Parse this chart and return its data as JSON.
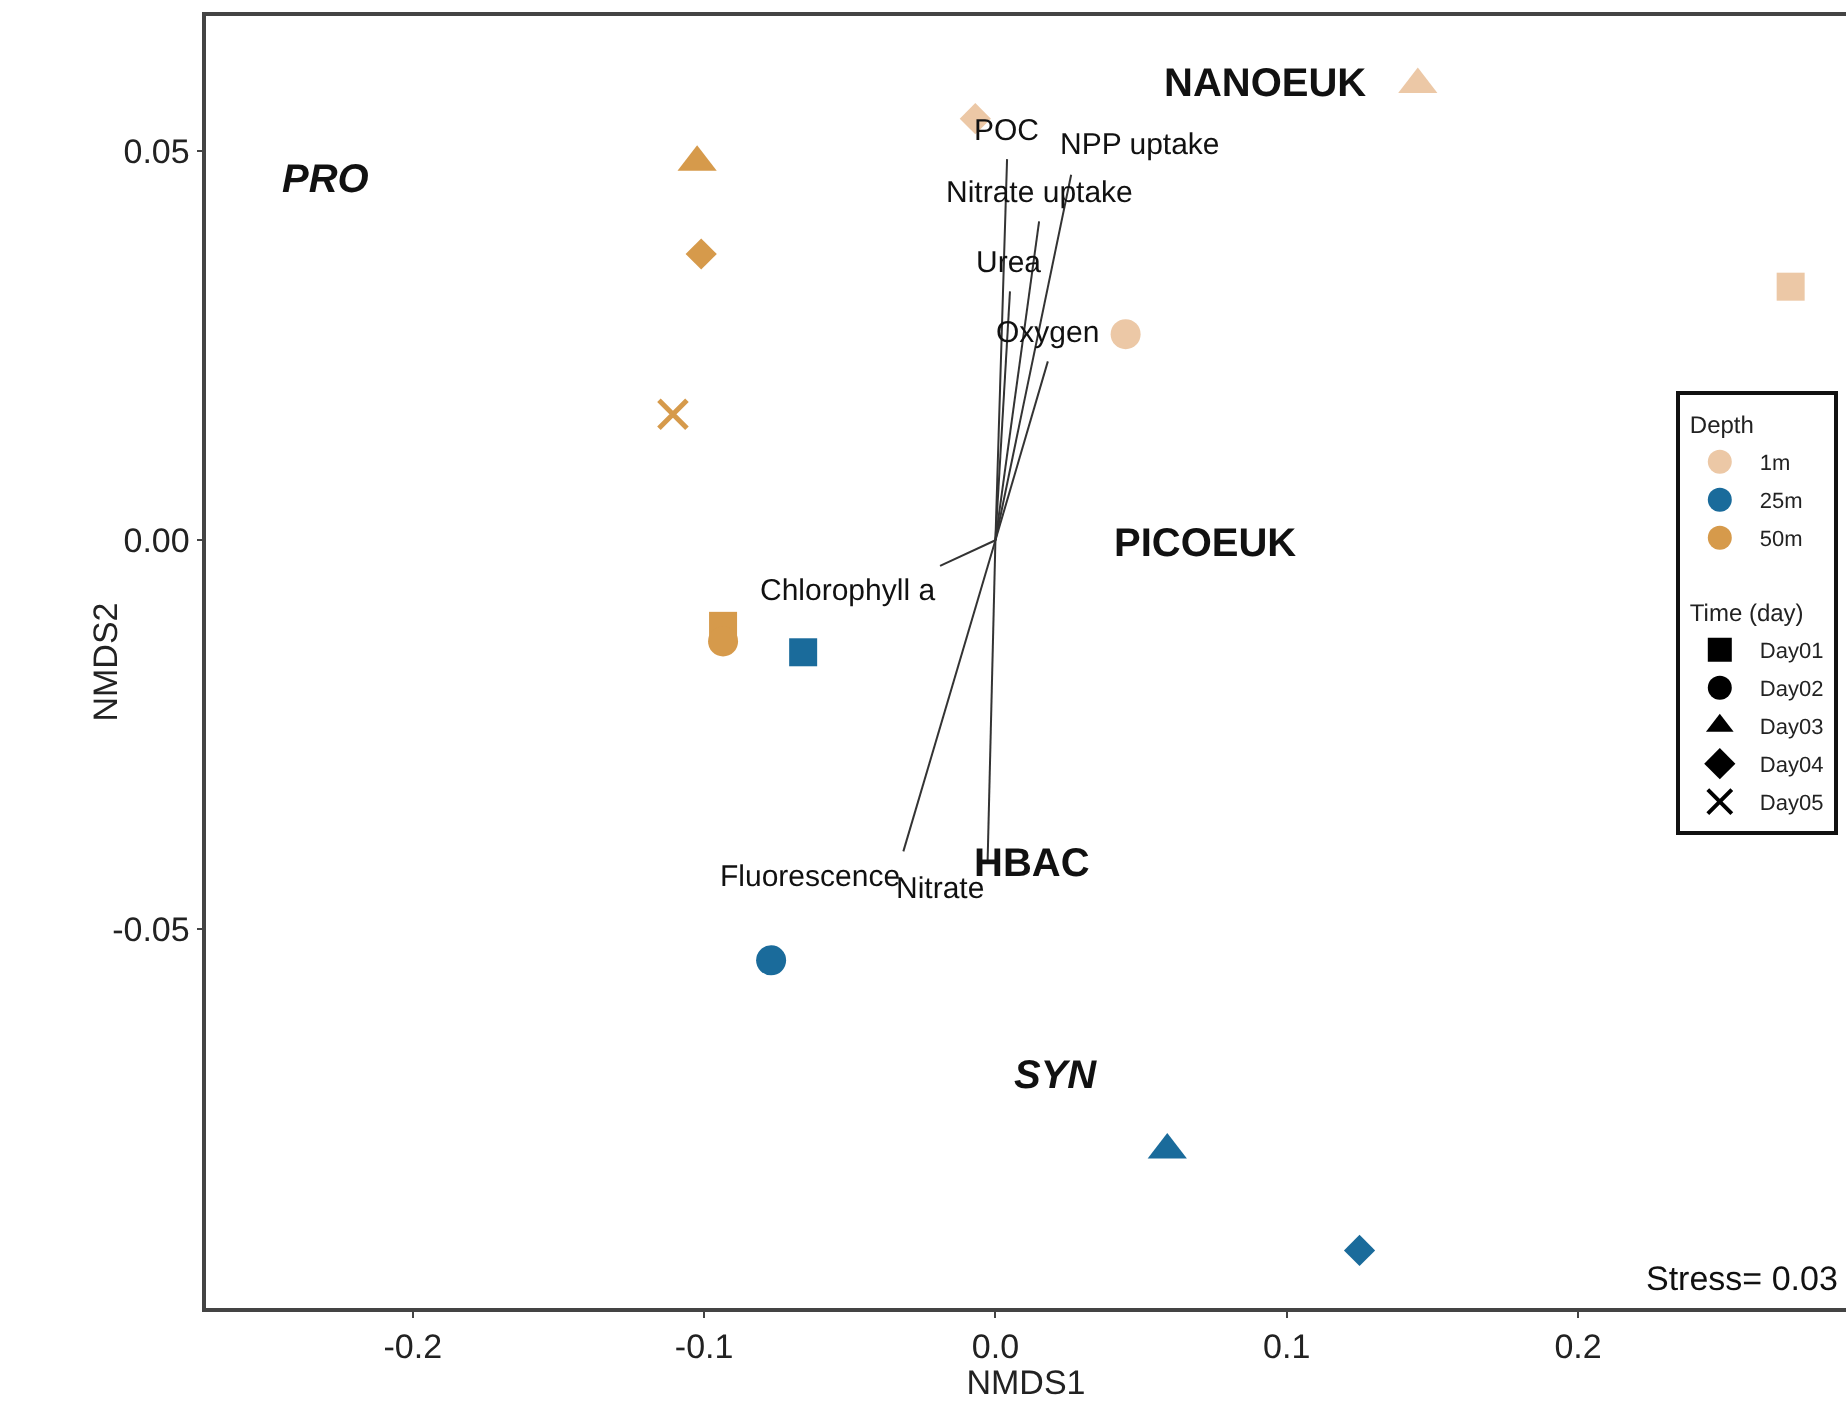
{
  "chart_data": {
    "type": "scatter",
    "xlabel": "NMDS1",
    "ylabel": "NMDS2",
    "xlim": [
      -0.271,
      0.292
    ],
    "xticks": [
      -0.2,
      -0.1,
      {
        "value": 0,
        "label": "0.0"
      },
      0.1,
      0.2
    ],
    "ylim": [
      -0.0987,
      0.0674
    ],
    "yticks": [
      {
        "value": -0.05,
        "label": "-0.05"
      },
      {
        "value": 0,
        "label": "0.00"
      },
      {
        "value": 0.05,
        "label": "0.05"
      }
    ],
    "grid": false,
    "legend": "right",
    "legend_title": [
      "Depth",
      "Time (day)"
    ],
    "series": [
      {
        "name": "1m",
        "color": "#ecc8a6",
        "marker": "circle"
      },
      {
        "name": "25m",
        "color": "#1a6b9b",
        "marker": "circle"
      },
      {
        "name": "50m",
        "color": "#d69a4b",
        "marker": "circle"
      },
      {
        "name": "Day01",
        "color": "#000000",
        "marker": "square"
      },
      {
        "name": "Day02",
        "color": "#000000",
        "marker": "circle"
      },
      {
        "name": "Day03",
        "color": "#000000",
        "marker": "triangle"
      },
      {
        "name": "Day04",
        "color": "#000000",
        "marker": "diamond"
      },
      {
        "name": "Day05",
        "color": "#000000",
        "marker": "cross"
      },
      {
        "color": "#ecc8a6",
        "marker": "square",
        "x": [
          0.273
        ],
        "values": [
          0.0326
        ]
      },
      {
        "color": "#ecc8a6",
        "marker": "circle",
        "x": [
          0.0447
        ],
        "values": [
          0.0265
        ]
      },
      {
        "color": "#ecc8a6",
        "marker": "triangle",
        "x": [
          0.145
        ],
        "values": [
          0.0586
        ]
      },
      {
        "color": "#ecc8a6",
        "marker": "diamond",
        "x": [
          -0.0069
        ],
        "values": [
          0.0542
        ]
      },
      {
        "color": "#1a6b9b",
        "marker": "square",
        "x": [
          -0.066
        ],
        "values": [
          -0.0144
        ]
      },
      {
        "color": "#1a6b9b",
        "marker": "circle",
        "x": [
          -0.077
        ],
        "values": [
          -0.054
        ]
      },
      {
        "color": "#1a6b9b",
        "marker": "triangle",
        "x": [
          0.059
        ],
        "values": [
          -0.0784
        ]
      },
      {
        "color": "#1a6b9b",
        "marker": "diamond",
        "x": [
          0.125
        ],
        "values": [
          -0.0913
        ]
      },
      {
        "color": "#d69a4b",
        "marker": "square",
        "x": [
          -0.0935
        ],
        "values": [
          -0.011
        ]
      },
      {
        "color": "#d69a4b",
        "marker": "circle",
        "x": [
          -0.0935
        ],
        "values": [
          -0.013
        ]
      },
      {
        "color": "#d69a4b",
        "marker": "triangle",
        "x": [
          -0.1024
        ],
        "values": [
          0.0486
        ]
      },
      {
        "color": "#d69a4b",
        "marker": "diamond",
        "x": [
          -0.101
        ],
        "values": [
          0.0368
        ]
      },
      {
        "color": "#d69a4b",
        "marker": "cross",
        "x": [
          -0.1107
        ],
        "values": [
          0.0162
        ]
      },
      {
        "type": "line",
        "color": "#333333",
        "x": [
          0,
          0.004,
          null,
          0,
          0.026,
          null,
          0,
          0.015,
          null,
          0,
          0.005,
          null,
          0,
          0.018,
          null,
          0,
          -0.019,
          null,
          0,
          -0.0316,
          null,
          0,
          -0.0027
        ],
        "values": [
          0,
          0.049,
          null,
          0,
          0.047,
          null,
          0,
          0.041,
          null,
          0,
          0.032,
          null,
          0,
          0.023,
          null,
          0,
          -0.0033,
          null,
          0,
          -0.04,
          null,
          0,
          -0.0416
        ]
      }
    ],
    "annotations": [
      {
        "text": "POC",
        "x": 0.004,
        "y": 0.049
      },
      {
        "text": "NPP uptake",
        "x": 0.026,
        "y": 0.047
      },
      {
        "text": "Nitrate uptake",
        "x": 0.015,
        "y": 0.041
      },
      {
        "text": "Urea",
        "x": 0.005,
        "y": 0.032
      },
      {
        "text": "Oxygen",
        "x": 0.018,
        "y": 0.023
      },
      {
        "text": "Chlorophyll a",
        "x": -0.019,
        "y": -0.0033
      },
      {
        "text": "Fluorescence",
        "x": -0.0316,
        "y": -0.04
      },
      {
        "text": "Nitrate",
        "x": -0.0027,
        "y": -0.0416
      },
      "PRO",
      "NANOEUK",
      "PICOEUK",
      "HBAC",
      "SYN",
      "Stress= 0.03"
    ]
  }
}
